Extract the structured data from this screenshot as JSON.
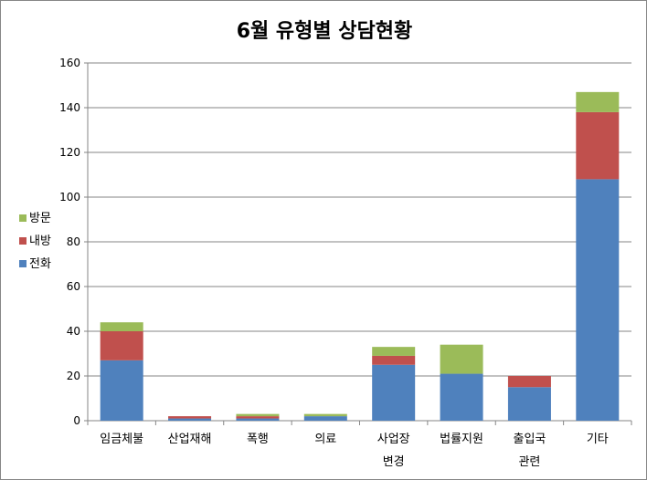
{
  "chart_data": {
    "type": "bar",
    "stacked": true,
    "title": "6월 유형별 상담현황",
    "xlabel": "",
    "ylabel": "",
    "ylim": [
      0,
      160
    ],
    "yticks": [
      0,
      20,
      40,
      60,
      80,
      100,
      120,
      140,
      160
    ],
    "grid": true,
    "legend_position": "left",
    "categories": [
      [
        "임금체불"
      ],
      [
        "산업재해"
      ],
      [
        "폭행"
      ],
      [
        "의료"
      ],
      [
        "사업장",
        "변경"
      ],
      [
        "법률지원"
      ],
      [
        "출입국",
        "관련"
      ],
      [
        "기타"
      ]
    ],
    "series": [
      {
        "name": "전화",
        "color": "#4F81BD",
        "values": [
          27,
          1,
          1,
          2,
          25,
          21,
          15,
          108
        ]
      },
      {
        "name": "내방",
        "color": "#C0504D",
        "values": [
          13,
          1,
          1,
          0,
          4,
          0,
          5,
          30
        ]
      },
      {
        "name": "방문",
        "color": "#9BBB59",
        "values": [
          4,
          0,
          1,
          1,
          4,
          13,
          0,
          9
        ]
      }
    ],
    "legend_order": [
      "방문",
      "내방",
      "전화"
    ]
  }
}
